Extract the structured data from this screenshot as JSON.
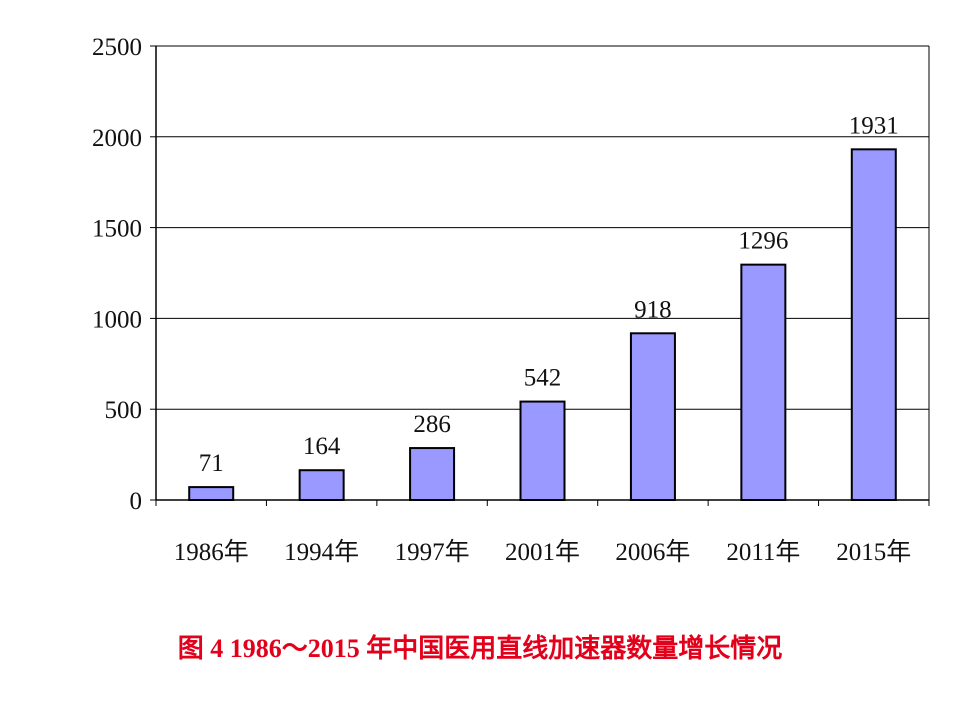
{
  "chart_data": {
    "type": "bar",
    "categories": [
      "1986年",
      "1994年",
      "1997年",
      "2001年",
      "2006年",
      "2011年",
      "2015年"
    ],
    "values": [
      71,
      164,
      286,
      542,
      918,
      1296,
      1931
    ],
    "data_labels": [
      "71",
      "164",
      "286",
      "542",
      "918",
      "1296",
      "1931"
    ],
    "ylim": [
      0,
      2500
    ],
    "yticks": [
      0,
      500,
      1000,
      1500,
      2000,
      2500
    ],
    "ytick_labels": [
      "0",
      "500",
      "1000",
      "1500",
      "2000",
      "2500"
    ],
    "grid": true,
    "legend": "none",
    "bar_color": "#9999ff",
    "bar_edge_color": "#000000"
  },
  "caption": "图 4 1986～2015 年中国医用直线加速器数量增长情况",
  "caption_color": "#e3001b"
}
